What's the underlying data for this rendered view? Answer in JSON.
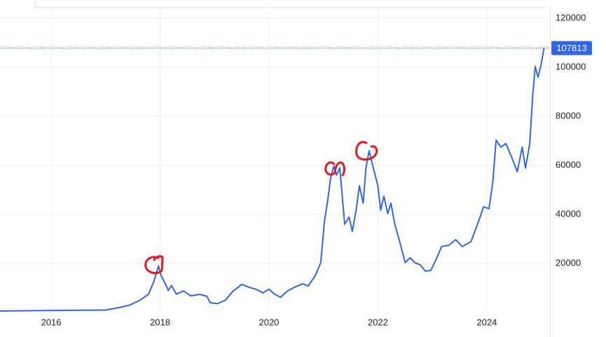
{
  "chart_data": {
    "type": "line",
    "color": "#2f66f0",
    "grid": true,
    "x": [
      2015.06,
      2016.35,
      2017.0,
      2017.25,
      2017.44,
      2017.63,
      2017.79,
      2017.89,
      2017.97,
      2018.02,
      2018.1,
      2018.15,
      2018.21,
      2018.3,
      2018.43,
      2018.56,
      2018.73,
      2018.86,
      2018.92,
      2019.05,
      2019.2,
      2019.33,
      2019.5,
      2019.63,
      2019.76,
      2019.89,
      2020.0,
      2020.1,
      2020.21,
      2020.34,
      2020.47,
      2020.62,
      2020.72,
      2020.85,
      2020.95,
      2021.02,
      2021.08,
      2021.13,
      2021.19,
      2021.24,
      2021.3,
      2021.34,
      2021.39,
      2021.47,
      2021.53,
      2021.6,
      2021.66,
      2021.73,
      2021.78,
      2021.84,
      2021.91,
      2022.0,
      2022.05,
      2022.11,
      2022.18,
      2022.24,
      2022.31,
      2022.4,
      2022.5,
      2022.59,
      2022.68,
      2022.78,
      2022.87,
      2022.97,
      2023.07,
      2023.17,
      2023.3,
      2023.43,
      2023.55,
      2023.71,
      2023.84,
      2023.94,
      2024.04,
      2024.11,
      2024.17,
      2024.26,
      2024.35,
      2024.46,
      2024.56,
      2024.65,
      2024.71,
      2024.79,
      2024.84,
      2024.89,
      2024.94,
      2024.99,
      2025.05
    ],
    "values": [
      600,
      900,
      1000,
      2000,
      3000,
      5000,
      7500,
      13000,
      19000,
      15000,
      11500,
      9000,
      11000,
      7500,
      8800,
      6800,
      7400,
      6600,
      4000,
      3600,
      5000,
      8500,
      11500,
      10300,
      9500,
      8000,
      9500,
      7500,
      6200,
      8800,
      10300,
      11700,
      10800,
      15000,
      20300,
      37400,
      46000,
      54600,
      59700,
      56000,
      59000,
      48900,
      36000,
      38900,
      33100,
      41700,
      51700,
      44600,
      58900,
      66000,
      59400,
      51700,
      41700,
      47400,
      40300,
      44600,
      36000,
      28900,
      20300,
      22300,
      20300,
      19400,
      16900,
      17100,
      21700,
      26900,
      27400,
      29700,
      26900,
      28900,
      36600,
      43100,
      42300,
      53100,
      70300,
      67400,
      68900,
      63100,
      57400,
      67400,
      58900,
      68900,
      87400,
      100300,
      96000,
      100300,
      107813
    ],
    "last_value": 107813,
    "xlim": [
      2015.06,
      2025.16
    ],
    "xticks": [
      2016,
      2018,
      2020,
      2022,
      2024
    ],
    "ylim": [
      0,
      124000
    ],
    "yticks": [
      20000,
      40000,
      60000,
      80000,
      100000,
      120000
    ]
  }
}
